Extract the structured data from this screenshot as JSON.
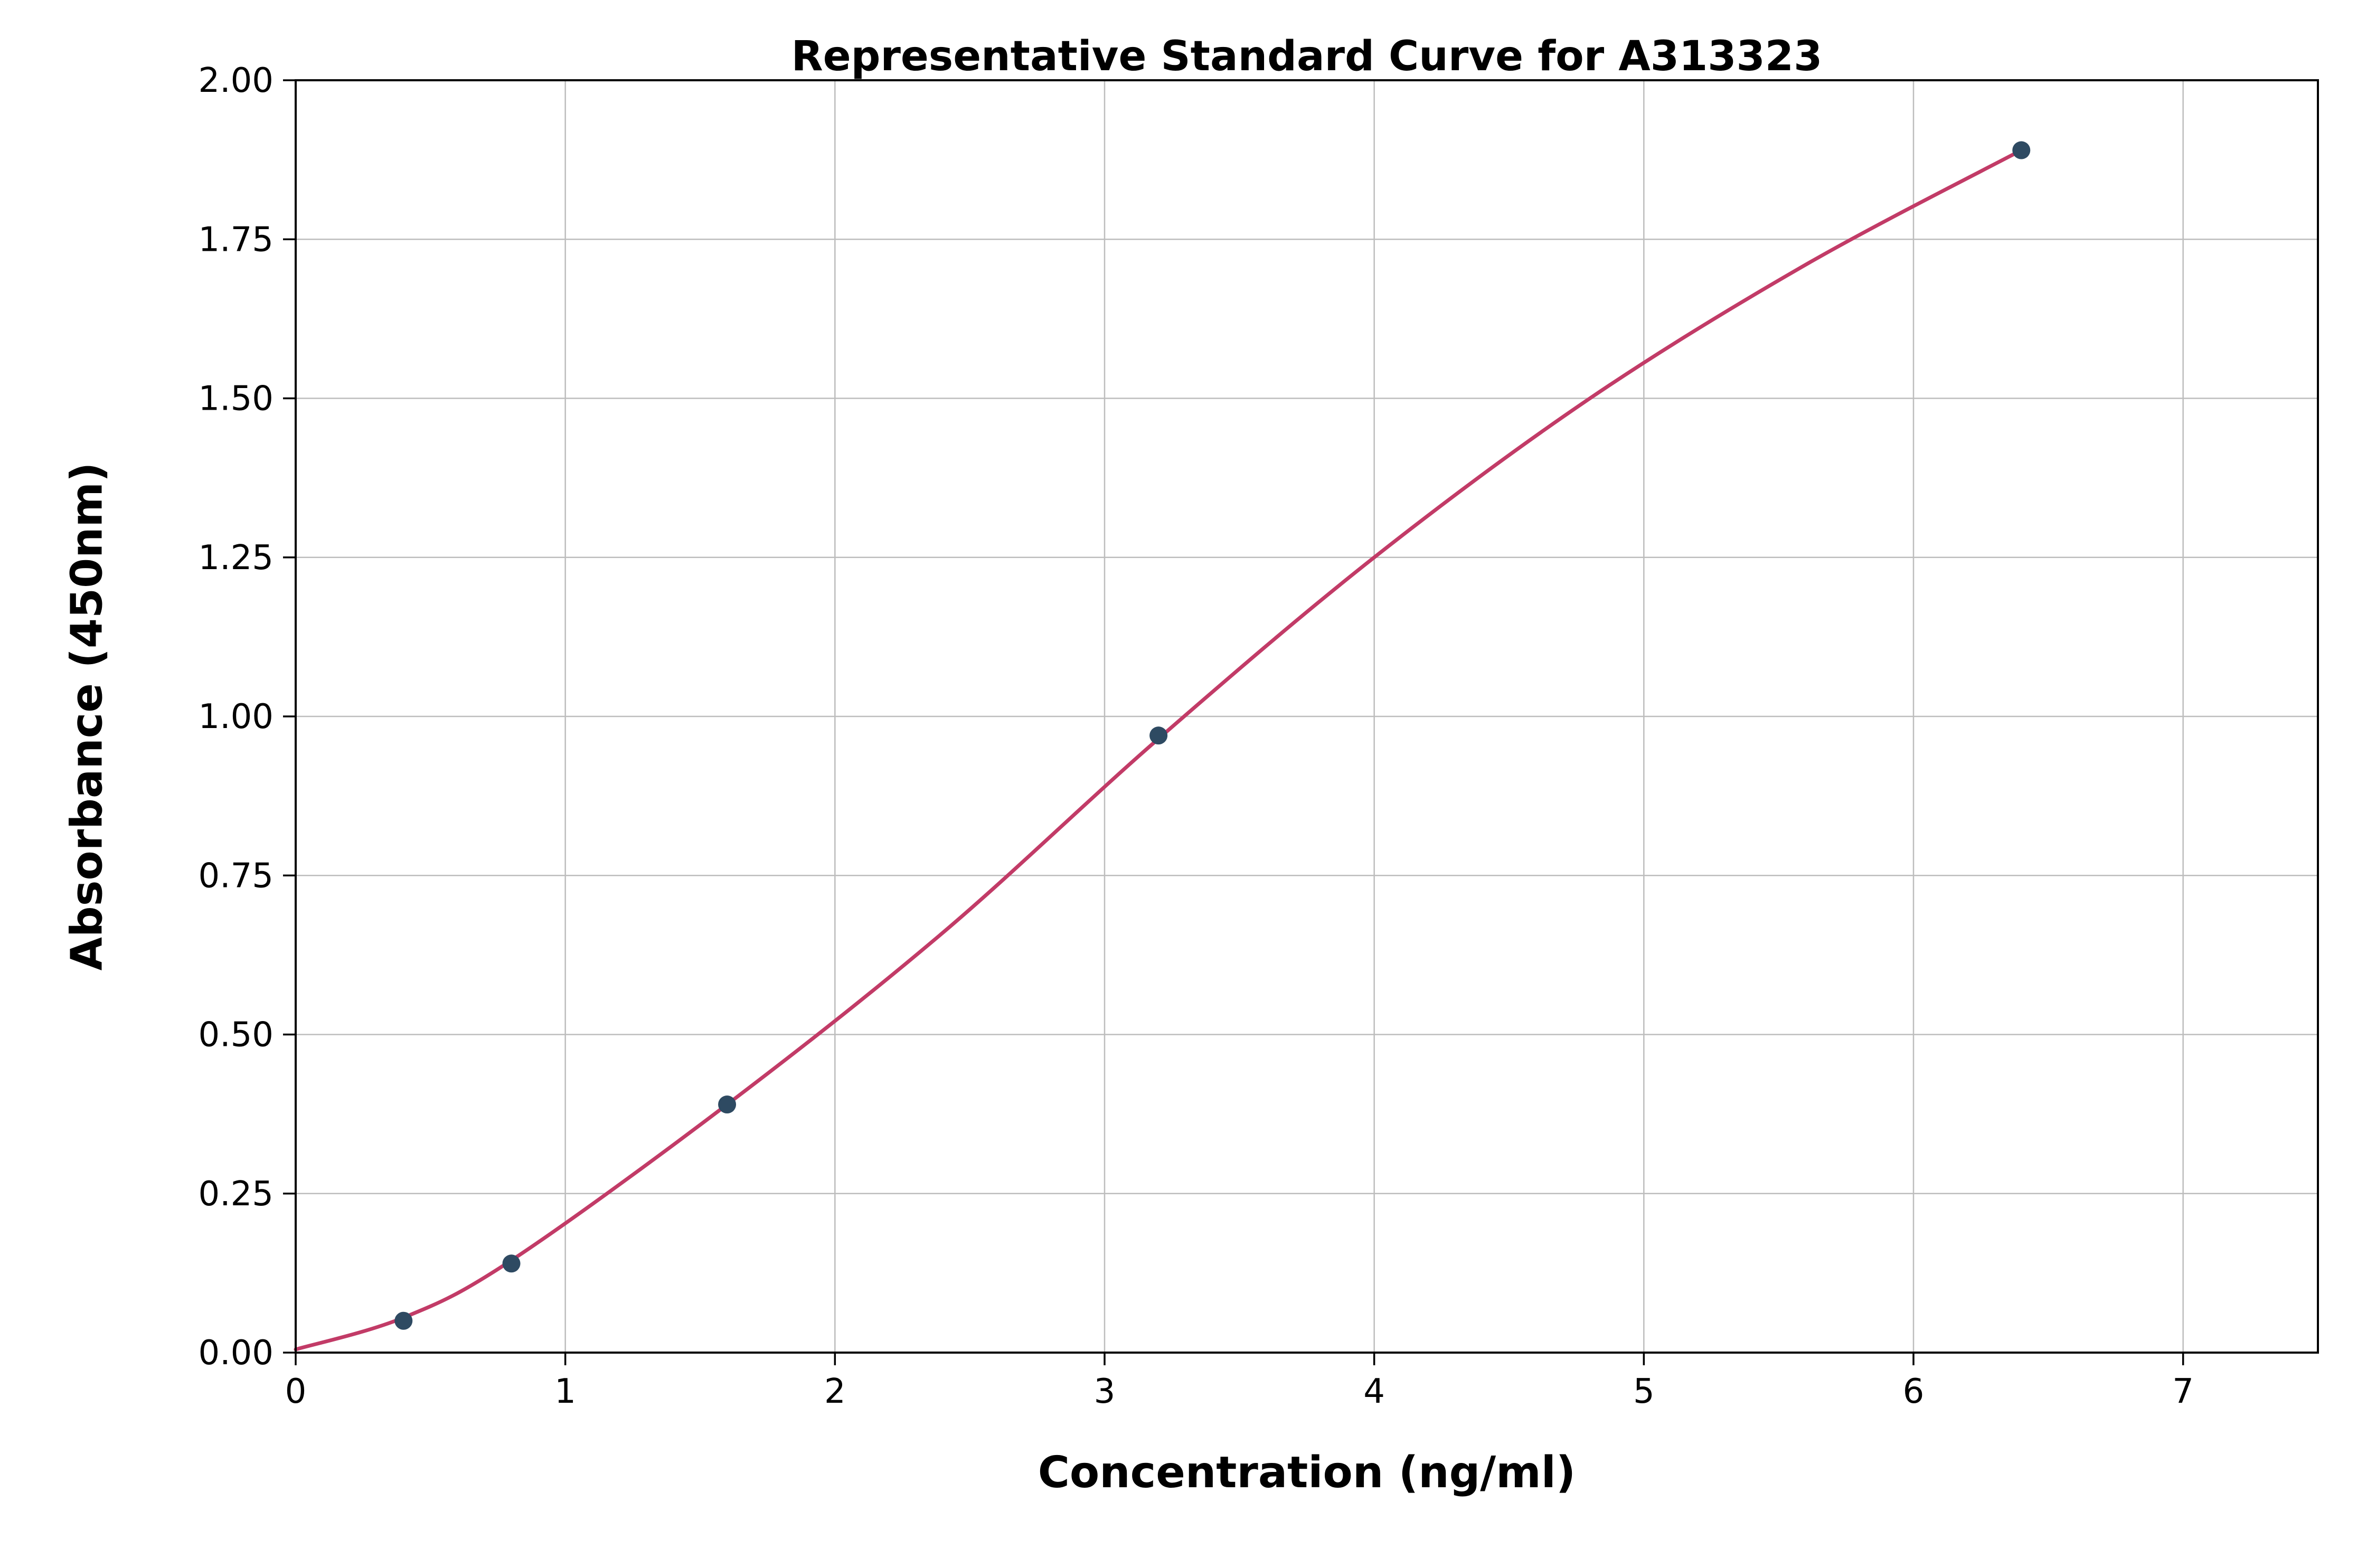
{
  "chart_data": {
    "type": "scatter",
    "title": "Representative Standard Curve for A313323",
    "xlabel": "Concentration (ng/ml)",
    "ylabel": "Absorbance (450nm)",
    "xlim": [
      0,
      7.5
    ],
    "ylim": [
      0,
      2.0
    ],
    "xticks": [
      0,
      1,
      2,
      3,
      4,
      5,
      6,
      7
    ],
    "xtick_labels": [
      "0",
      "1",
      "2",
      "3",
      "4",
      "5",
      "6",
      "7"
    ],
    "yticks": [
      0.0,
      0.25,
      0.5,
      0.75,
      1.0,
      1.25,
      1.5,
      1.75,
      2.0
    ],
    "ytick_labels": [
      "0.00",
      "0.25",
      "0.50",
      "0.75",
      "1.00",
      "1.25",
      "1.50",
      "1.75",
      "2.00"
    ],
    "grid": true,
    "legend": "none",
    "points": {
      "x": [
        0.4,
        0.8,
        1.6,
        3.2,
        6.4
      ],
      "y": [
        0.05,
        0.14,
        0.39,
        0.97,
        1.89
      ]
    },
    "fit_curve": {
      "x": [
        0,
        0.4,
        0.8,
        1.6,
        2.4,
        3.2,
        4.0,
        4.8,
        5.6,
        6.4
      ],
      "y": [
        0.005,
        0.055,
        0.145,
        0.39,
        0.66,
        0.965,
        1.25,
        1.5,
        1.71,
        1.89
      ]
    },
    "colors": {
      "line": "#c23b67",
      "marker": "#2e4a62",
      "grid": "#bdbdbd",
      "axis": "#000000",
      "background": "#ffffff"
    }
  }
}
